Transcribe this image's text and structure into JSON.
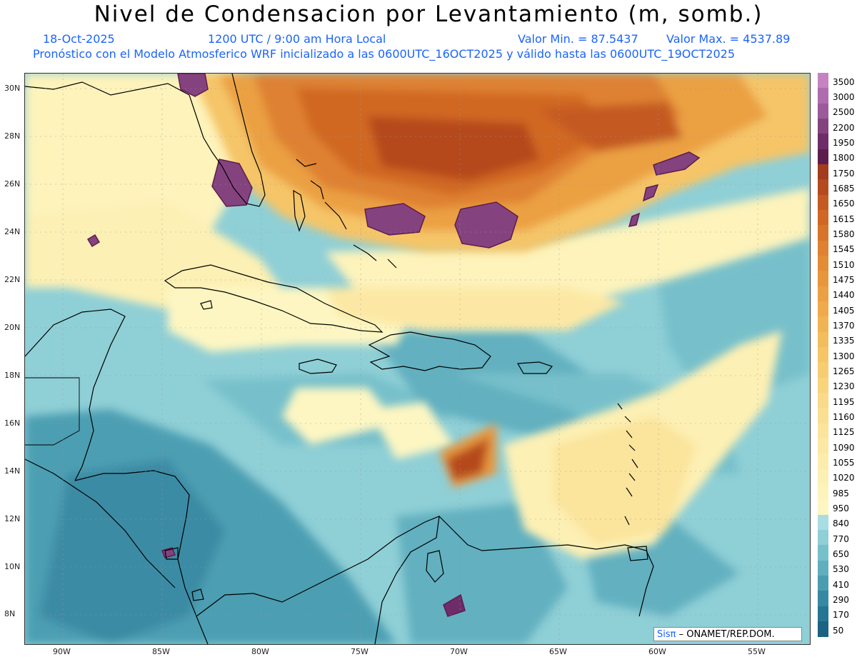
{
  "header": {
    "title": "Nivel de Condensacion por Levantamiento (m, somb.)",
    "date": "18-Oct-2025",
    "time": "1200 UTC / 9:00 am Hora Local",
    "min_label": "Valor Min. = 87.5437",
    "max_label": "Valor Max. = 4537.89",
    "model_line": "Pronóstico con el Modelo Atmosferico WRF inicializado a las 0600UTC_16OCT2025 y válido hasta las  0600UTC_19OCT2025"
  },
  "map": {
    "lon_labels": [
      "90W",
      "85W",
      "80W",
      "75W",
      "70W",
      "65W",
      "60W",
      "55W"
    ],
    "lat_labels": [
      "30N",
      "28N",
      "26N",
      "24N",
      "22N",
      "20N",
      "18N",
      "16N",
      "14N",
      "12N",
      "10N",
      "8N"
    ],
    "lon_range": [
      -92,
      -52.5
    ],
    "lat_range": [
      6.7,
      30.7
    ]
  },
  "legend": {
    "labels": [
      "3500",
      "3000",
      "2500",
      "2200",
      "1950",
      "1800",
      "1750",
      "1685",
      "1650",
      "1615",
      "1580",
      "1545",
      "1510",
      "1475",
      "1440",
      "1405",
      "1370",
      "1335",
      "1300",
      "1265",
      "1230",
      "1195",
      "1160",
      "1125",
      "1090",
      "1055",
      "1020",
      "985",
      "950",
      "840",
      "770",
      "650",
      "530",
      "410",
      "290",
      "170",
      "50"
    ],
    "colors": [
      "#c583c1",
      "#b06bae",
      "#9c5a9a",
      "#84437f",
      "#6e2d68",
      "#5e1c4e",
      "#a33b1c",
      "#b54a1e",
      "#c45a20",
      "#d06724",
      "#d87429",
      "#df8130",
      "#e38c36",
      "#e7963c",
      "#eba043",
      "#eeaa4b",
      "#f1b454",
      "#f3bd5d",
      "#f5c567",
      "#f7cd72",
      "#f8d47d",
      "#f9da88",
      "#fadf92",
      "#fbe49c",
      "#fce8a4",
      "#fcedac",
      "#fdf0b4",
      "#fdf3bb",
      "#fdf6c2",
      "#a8dde2",
      "#8fcfd6",
      "#76c0cb",
      "#60afbf",
      "#4a9cb1",
      "#3788a2",
      "#267592",
      "#1b6383"
    ]
  },
  "credit": {
    "brand": "Sisπ",
    "text": " – ONAMET/REP.DOM."
  }
}
